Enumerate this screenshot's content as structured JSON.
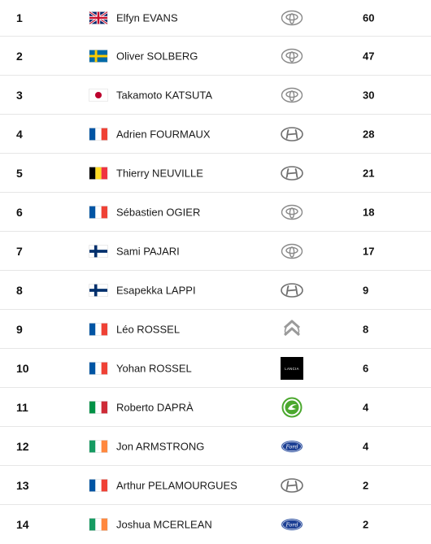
{
  "standings": {
    "rows": [
      {
        "position": "1",
        "flag": "gb-flag-icon",
        "driver": "Elfyn EVANS",
        "team": "toyota-logo-icon",
        "points": "60"
      },
      {
        "position": "2",
        "flag": "se-flag-icon",
        "driver": "Oliver SOLBERG",
        "team": "toyota-logo-icon",
        "points": "47"
      },
      {
        "position": "3",
        "flag": "jp-flag-icon",
        "driver": "Takamoto KATSUTA",
        "team": "toyota-logo-icon",
        "points": "30"
      },
      {
        "position": "4",
        "flag": "fr-flag-icon",
        "driver": "Adrien FOURMAUX",
        "team": "hyundai-logo-icon",
        "points": "28"
      },
      {
        "position": "5",
        "flag": "be-flag-icon",
        "driver": "Thierry NEUVILLE",
        "team": "hyundai-logo-icon",
        "points": "21"
      },
      {
        "position": "6",
        "flag": "fr-flag-icon",
        "driver": "Sébastien OGIER",
        "team": "toyota-logo-icon",
        "points": "18"
      },
      {
        "position": "7",
        "flag": "fi-flag-icon",
        "driver": "Sami PAJARI",
        "team": "toyota-logo-icon",
        "points": "17"
      },
      {
        "position": "8",
        "flag": "fi-flag-icon",
        "driver": "Esapekka LAPPI",
        "team": "hyundai-logo-icon",
        "points": "9"
      },
      {
        "position": "9",
        "flag": "fr-flag-icon",
        "driver": "Léo ROSSEL",
        "team": "citroen-logo-icon",
        "points": "8"
      },
      {
        "position": "10",
        "flag": "fr-flag-icon",
        "driver": "Yohan ROSSEL",
        "team": "lancia-logo-icon",
        "team_text": "LANCIA",
        "points": "6"
      },
      {
        "position": "11",
        "flag": "it-flag-icon",
        "driver": "Roberto DAPRÀ",
        "team": "skoda-logo-icon",
        "points": "4"
      },
      {
        "position": "12",
        "flag": "ie-flag-icon",
        "driver": "Jon ARMSTRONG",
        "team": "ford-logo-icon",
        "team_text": "Ford",
        "points": "4"
      },
      {
        "position": "13",
        "flag": "fr-flag-icon",
        "driver": "Arthur PELAMOURGUES",
        "team": "hyundai-logo-icon",
        "points": "2"
      },
      {
        "position": "14",
        "flag": "ie-flag-icon",
        "driver": "Joshua MCERLEAN",
        "team": "ford-logo-icon",
        "team_text": "Ford",
        "points": "2"
      }
    ]
  }
}
